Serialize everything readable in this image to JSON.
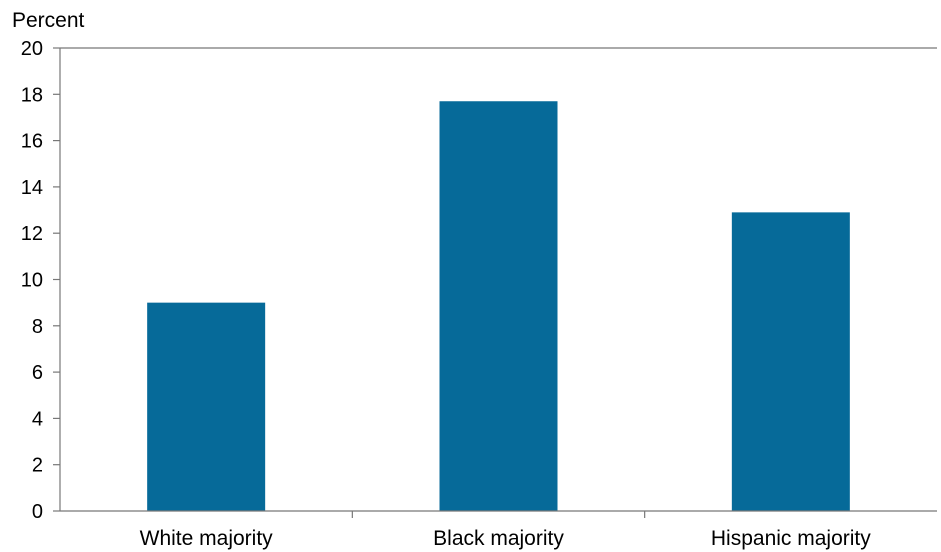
{
  "chart_data": {
    "type": "bar",
    "unit_label": "Percent",
    "categories": [
      "White majority",
      "Black majority",
      "Hispanic majority"
    ],
    "values": [
      9.0,
      17.7,
      12.9
    ],
    "ylim": [
      0,
      20
    ],
    "yticks": [
      0,
      2,
      4,
      6,
      8,
      10,
      12,
      14,
      16,
      18,
      20
    ],
    "xlabel": "",
    "ylabel": "",
    "grid": false,
    "bar_color": "#066a99",
    "axis_color": "#777777"
  }
}
